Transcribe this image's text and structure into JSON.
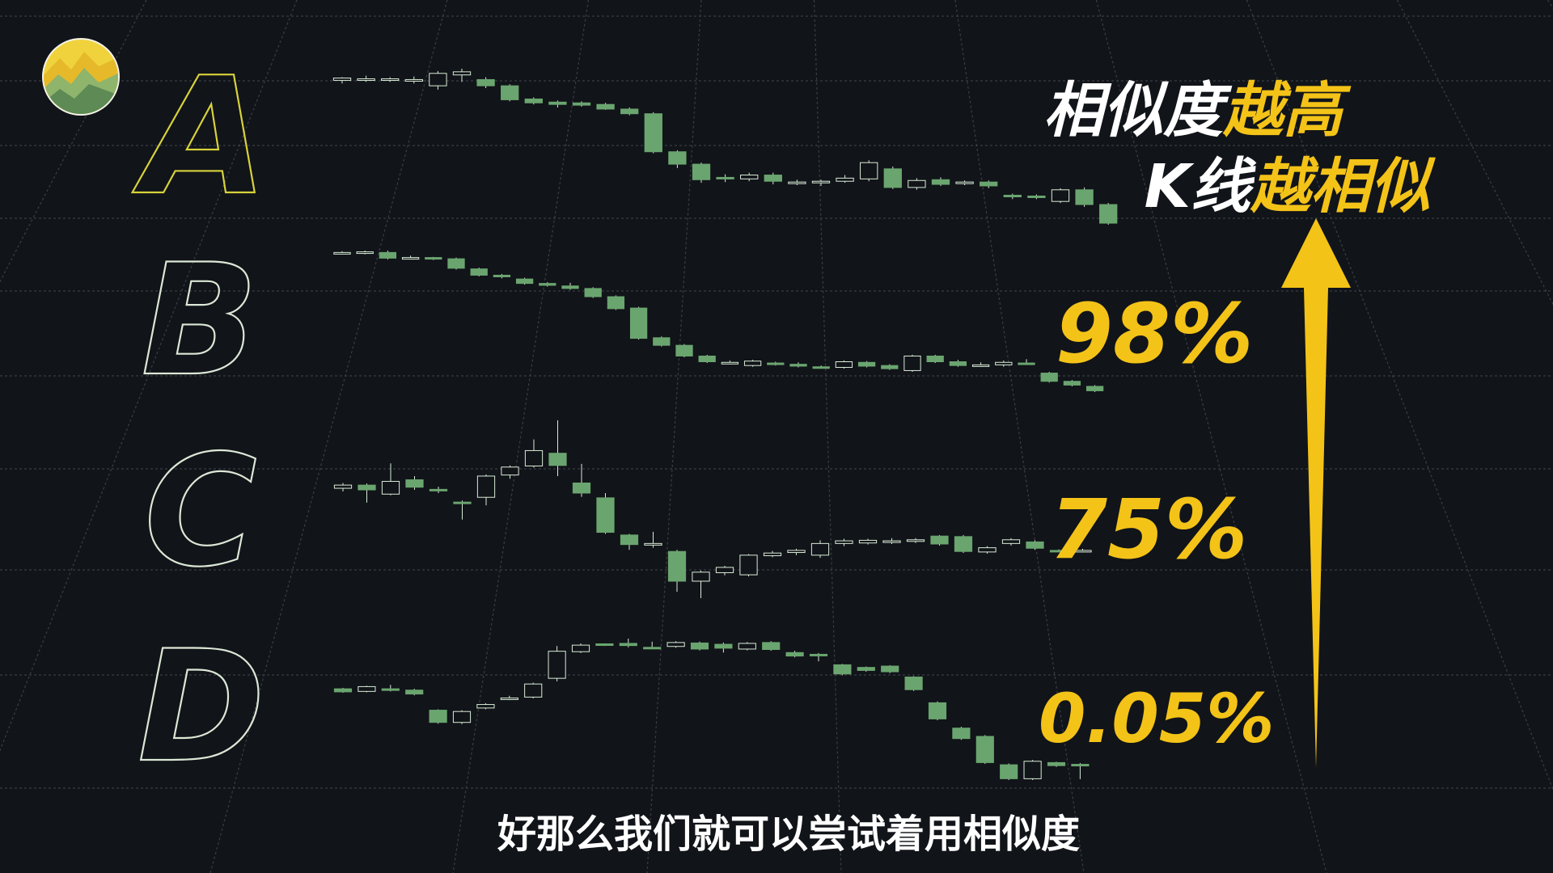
{
  "colors": {
    "background": "#111419",
    "grid": "#3a3f44",
    "candle_fill": "#6aa56f",
    "candle_hollow": "#d9ecd7",
    "letter_outline": "#dce8d6",
    "letter_highlight": "#d8d23a",
    "accent_yellow": "#f4c318",
    "white": "#ffffff"
  },
  "logo": {
    "icon": "mountain-chart-logo-icon"
  },
  "headline": {
    "line1_white": "相似度",
    "line1_yellow": "越高",
    "line2_white": "K线",
    "line2_yellow": "越相似"
  },
  "rows": [
    {
      "letter": "A",
      "highlighted": true,
      "percent": "",
      "candles": [
        [
          100,
          100.3,
          99.6,
          100.4
        ],
        [
          100.2,
          100.2,
          99.8,
          100.6
        ],
        [
          100,
          100.2,
          99.8,
          100.4
        ],
        [
          99.9,
          100.1,
          99.6,
          100.5
        ],
        [
          99.3,
          100.9,
          98.8,
          101.2
        ],
        [
          100.7,
          101.1,
          99.8,
          101.5
        ],
        [
          100.1,
          99.3,
          99,
          100.4
        ],
        [
          99.3,
          97.5,
          97.3,
          99.5
        ],
        [
          97.6,
          97.1,
          96.9,
          97.8
        ],
        [
          97.2,
          96.9,
          96.5,
          97.4
        ],
        [
          97.1,
          96.8,
          96.6,
          97.3
        ],
        [
          96.9,
          96.3,
          96.2,
          97.1
        ],
        [
          96.3,
          95.7,
          95.5,
          96.5
        ],
        [
          95.7,
          90.8,
          90.6,
          95.9
        ],
        [
          90.8,
          89.2,
          88.7,
          91
        ],
        [
          89.2,
          87.2,
          86.8,
          89.4
        ],
        [
          87.5,
          87.3,
          86.9,
          87.9
        ],
        [
          87.3,
          87.8,
          87,
          88.1
        ],
        [
          87.8,
          87,
          86.6,
          88.1
        ],
        [
          86.9,
          86.9,
          86.5,
          87.2
        ],
        [
          86.8,
          87,
          86.4,
          87.2
        ],
        [
          87,
          87.4,
          86.8,
          87.8
        ],
        [
          87.3,
          89.4,
          87,
          89.7
        ],
        [
          88.6,
          86.2,
          86,
          88.9
        ],
        [
          86.2,
          87.1,
          85.9,
          87.4
        ],
        [
          87.2,
          86.6,
          86.4,
          87.5
        ],
        [
          86.7,
          86.9,
          86.5,
          87.1
        ],
        [
          86.9,
          86.4,
          86.1,
          87.1
        ],
        [
          85.2,
          85.1,
          84.7,
          85.4
        ],
        [
          85.1,
          84.9,
          84.7,
          85.3
        ],
        [
          84.4,
          85.9,
          84.2,
          86.1
        ],
        [
          85.9,
          84,
          83.7,
          86.2
        ],
        [
          84,
          81.6,
          81.4,
          84.2
        ]
      ]
    },
    {
      "letter": "B",
      "highlighted": false,
      "percent": "98%",
      "candles": [
        [
          100,
          100,
          99.8,
          100.2
        ],
        [
          100,
          100.1,
          99.7,
          100.3
        ],
        [
          100,
          99.1,
          98.9,
          100.3
        ],
        [
          99.1,
          99.2,
          98.9,
          99.5
        ],
        [
          99.2,
          99,
          98.8,
          99.3
        ],
        [
          99,
          97.5,
          97.3,
          99.2
        ],
        [
          97.4,
          96.4,
          96.2,
          97.6
        ],
        [
          96.4,
          96.2,
          95.9,
          96.6
        ],
        [
          95.8,
          95.1,
          94.9,
          96
        ],
        [
          95.1,
          94.8,
          94.6,
          95.3
        ],
        [
          94.7,
          94.3,
          94.1,
          95.2
        ],
        [
          94.3,
          93,
          92.8,
          94.5
        ],
        [
          93,
          91.1,
          90.9,
          93.2
        ],
        [
          91.2,
          86.4,
          86.2,
          91.4
        ],
        [
          86.5,
          85.3,
          85.1,
          86.7
        ],
        [
          85.3,
          83.6,
          83.4,
          85.5
        ],
        [
          83.6,
          82.7,
          82.5,
          83.8
        ],
        [
          82.6,
          82.6,
          82.3,
          82.9
        ],
        [
          82.1,
          82.8,
          81.9,
          83
        ],
        [
          82.5,
          82.3,
          82.1,
          82.7
        ],
        [
          82.3,
          82,
          81.8,
          82.6
        ],
        [
          81.9,
          81.8,
          81.6,
          82.1
        ],
        [
          81.8,
          82.7,
          81.6,
          82.9
        ],
        [
          82.6,
          82,
          81.8,
          82.8
        ],
        [
          82.1,
          81.6,
          81.4,
          82.3
        ],
        [
          81.3,
          83.6,
          81.1,
          83.8
        ],
        [
          83.6,
          82.7,
          82.5,
          83.8
        ],
        [
          82.7,
          82.1,
          81.9,
          83
        ],
        [
          82.1,
          82.2,
          81.9,
          82.6
        ],
        [
          82.2,
          82.6,
          81.9,
          82.9
        ],
        [
          82.5,
          82.4,
          82.2,
          83.1
        ],
        [
          80.9,
          79.6,
          79.4,
          81.1
        ],
        [
          79.6,
          79,
          78.8,
          79.8
        ],
        [
          78.8,
          78.1,
          77.9,
          79
        ]
      ]
    },
    {
      "letter": "C",
      "highlighted": false,
      "percent": "75%",
      "candles": [
        [
          100,
          100.6,
          99.4,
          101
        ],
        [
          100.6,
          99.7,
          97.3,
          100.9
        ],
        [
          98.9,
          101.3,
          98.7,
          104.7
        ],
        [
          101.6,
          100.2,
          99.7,
          102.3
        ],
        [
          99.8,
          99.6,
          99.1,
          100.3
        ],
        [
          97.4,
          97.1,
          94.1,
          97.7
        ],
        [
          98.3,
          102.3,
          96.8,
          102.6
        ],
        [
          102.5,
          104,
          101.8,
          104.3
        ],
        [
          104.2,
          107.1,
          103.9,
          109.2
        ],
        [
          106.6,
          104.3,
          102.3,
          112.8
        ],
        [
          101,
          99.1,
          98.4,
          104.6
        ],
        [
          98.2,
          91.7,
          91.4,
          99.1
        ],
        [
          91.2,
          89.4,
          88.4,
          91.4
        ],
        [
          89.4,
          89.6,
          88.8,
          91.8
        ],
        [
          88.1,
          82.5,
          80.5,
          88.4
        ],
        [
          82.5,
          84.2,
          79.3,
          84.5
        ],
        [
          84.1,
          85.1,
          83.6,
          85.4
        ],
        [
          83.7,
          87.4,
          83.4,
          87.6
        ],
        [
          87.3,
          87.8,
          87,
          88.2
        ],
        [
          87.9,
          88.3,
          87.4,
          88.6
        ],
        [
          87.4,
          89.6,
          86.9,
          90.2
        ],
        [
          89.6,
          90.1,
          89.1,
          90.5
        ],
        [
          89.7,
          90.2,
          89.4,
          90.5
        ],
        [
          90.1,
          90.1,
          89.5,
          90.6
        ],
        [
          90.2,
          90.3,
          89.7,
          90.6
        ],
        [
          91,
          89.5,
          89.2,
          91.2
        ],
        [
          90.9,
          88.1,
          87.8,
          91.2
        ],
        [
          88,
          88.8,
          87.7,
          89.1
        ],
        [
          89.6,
          90.3,
          89.2,
          90.6
        ],
        [
          89.9,
          88.7,
          88.4,
          90.2
        ],
        [
          88.3,
          88.2,
          88,
          88.5
        ],
        [
          88.2,
          88.3,
          87.9,
          88.6
        ]
      ]
    },
    {
      "letter": "D",
      "highlighted": false,
      "percent": "0.05%",
      "candles": [
        [
          100,
          99.3,
          99.1,
          100.2
        ],
        [
          99.4,
          100.5,
          99.2,
          100.7
        ],
        [
          100,
          99.8,
          99.4,
          100.9
        ],
        [
          99.7,
          98.8,
          98.5,
          100
        ],
        [
          95.1,
          92.3,
          92,
          95.3
        ],
        [
          92.3,
          94.8,
          91.9,
          95.1
        ],
        [
          95.6,
          96.4,
          95.3,
          96.7
        ],
        [
          97.7,
          97.9,
          97.4,
          98.4
        ],
        [
          98.1,
          101.1,
          97.8,
          101.4
        ],
        [
          102.4,
          108.6,
          101.7,
          109.8
        ],
        [
          108.5,
          110,
          108.2,
          110.4
        ],
        [
          110.3,
          110.1,
          109.8,
          110.4
        ],
        [
          110.4,
          109.9,
          109.5,
          111.5
        ],
        [
          109.5,
          109.4,
          109.2,
          110.8
        ],
        [
          109.7,
          110.6,
          109.4,
          110.9
        ],
        [
          110.5,
          109.1,
          108.8,
          110.8
        ],
        [
          110.2,
          109.3,
          108.3,
          110.6
        ],
        [
          109.1,
          110.4,
          108.8,
          110.7
        ],
        [
          110.6,
          109,
          108.7,
          110.9
        ],
        [
          108.3,
          107.5,
          107.2,
          108.7
        ],
        [
          107.9,
          107.7,
          106.3,
          108.2
        ],
        [
          105.5,
          103.4,
          103.1,
          105.7
        ],
        [
          104.9,
          104.2,
          103.9,
          105.1
        ],
        [
          105.2,
          103.9,
          103.6,
          105.4
        ],
        [
          102.7,
          99.8,
          99.5,
          102.9
        ],
        [
          96.8,
          93.1,
          92.8,
          97.1
        ],
        [
          91,
          88.6,
          88.3,
          91.3
        ],
        [
          89.1,
          83.1,
          82.8,
          89.4
        ],
        [
          82.6,
          79.4,
          79.1,
          82.9
        ],
        [
          79.4,
          83.4,
          79.1,
          83.7
        ],
        [
          83.1,
          82.4,
          82.1,
          83.3
        ],
        [
          82.7,
          82.6,
          79.3,
          83
        ]
      ]
    }
  ],
  "subtitle": "好那么我们就可以尝试着用相似度"
}
